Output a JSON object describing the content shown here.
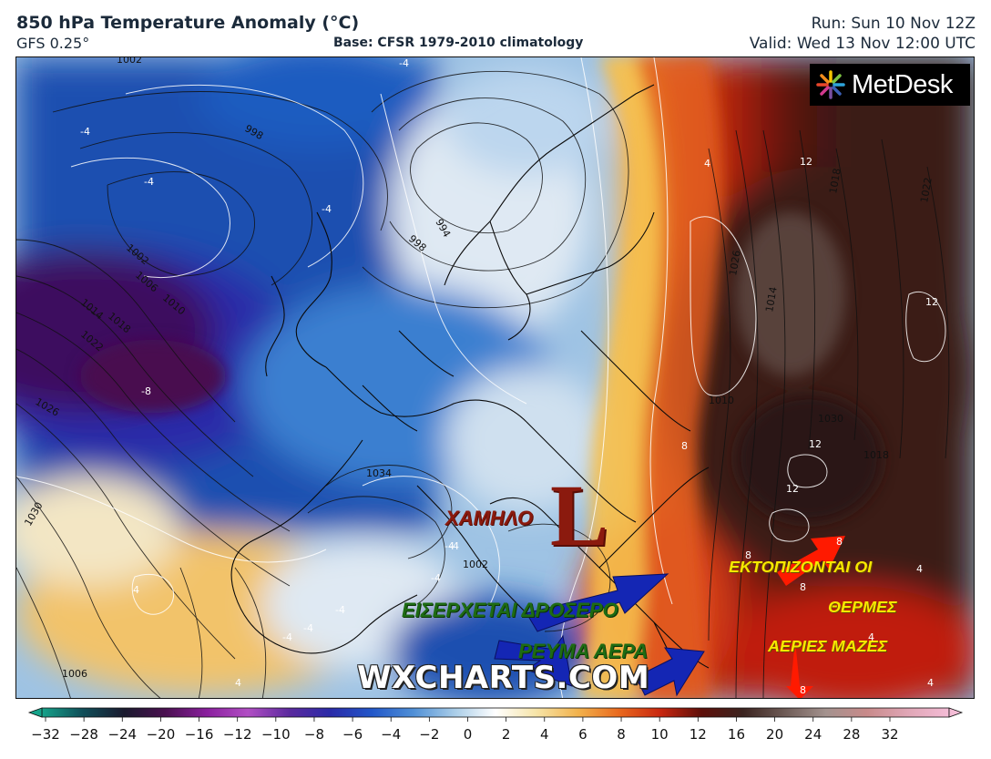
{
  "header": {
    "title": "850 hPa Temperature Anomaly (°C)",
    "model": "GFS 0.25°",
    "base": "Base: CFSR 1979-2010 climatology",
    "run": "Run: Sun 10 Nov 12Z",
    "valid": "Valid: Wed 13 Nov 12:00 UTC"
  },
  "logo": {
    "text": "MetDesk",
    "icon": "sunburst-logo-icon"
  },
  "watermark": "WXCHARTS.COM",
  "annotations": {
    "low_word": "ΧΑΜΗΛΟ",
    "low_letter": "L",
    "cool_line1": "ΕΙΣΕΡΧΕΤΑΙ ΔΡΟΣΕΡΟ",
    "cool_line2": "ΡΕΥΜΑ ΑΕΡΑ",
    "warm_line1": "ΕΚΤΟΠΙΖΟΝΤΑΙ ΟΙ",
    "warm_line2": "ΘΕΡΜΕΣ",
    "warm_line3": "ΑΕΡΙΕΣ ΜΑΖΕΣ"
  },
  "map_labels": {
    "isobars": [
      "1002",
      "998",
      "994",
      "998",
      "1002",
      "1006",
      "1010",
      "1014",
      "1018",
      "1022",
      "1026",
      "1030",
      "1034",
      "1002",
      "1006",
      "1026",
      "1014",
      "1018",
      "1022",
      "1030",
      "1018",
      "1010"
    ],
    "anomaly": [
      "-4",
      "-4",
      "-4",
      "-4",
      "-4",
      "-4",
      "-8",
      "-4",
      "-4",
      "-4",
      "-4",
      "4",
      "4",
      "8",
      "8",
      "8",
      "8",
      "8",
      "12",
      "12",
      "12",
      "12",
      "4",
      "4",
      "4",
      "4"
    ]
  },
  "colorbar": {
    "ticks": [
      "−32",
      "−28",
      "−24",
      "−20",
      "−16",
      "−12",
      "−10",
      "−8",
      "−6",
      "−4",
      "−2",
      "0",
      "2",
      "4",
      "6",
      "8",
      "10",
      "12",
      "16",
      "20",
      "24",
      "28",
      "32"
    ],
    "stops": [
      "#16a38a",
      "#0f4d58",
      "#1a1a2e",
      "#4a1050",
      "#8a1f9e",
      "#b14ec4",
      "#5b2a9e",
      "#2a2aa8",
      "#2257c9",
      "#4f8fd6",
      "#a9cde8",
      "#ffffff",
      "#f6e4a8",
      "#f2b24c",
      "#e9691e",
      "#c8260f",
      "#5e0f0a",
      "#3b2420",
      "#6d5a55",
      "#a3928e",
      "#c88a8a",
      "#e0a6b6",
      "#f4bcd6"
    ]
  },
  "colors": {
    "cold_core": "#3c0d5e",
    "cold": "#1a4fb0",
    "cool": "#6ea4d8",
    "neutral": "#e9eef4",
    "warm": "#f2a03a",
    "hot": "#d8421a",
    "very_hot": "#3a1a16",
    "arrow_blue": "#1426b4",
    "arrow_red": "#ff1a00"
  }
}
